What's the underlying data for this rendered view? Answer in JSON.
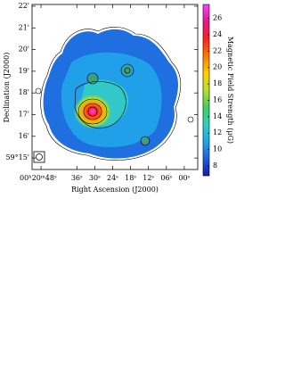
{
  "chart_data": {
    "type": "image",
    "xlabel": "Right Ascension (J2000)",
    "ylabel": "Declination (J2000)",
    "colorbar_label": "Magnetic Field Strength (μG)",
    "xlim": [
      51,
      -4.5
    ],
    "xticks": [
      {
        "value": 48,
        "label": "00ʰ20ᵐ48ˢ"
      },
      {
        "value": 36,
        "label": "36ˢ"
      },
      {
        "value": 30,
        "label": "30ˢ"
      },
      {
        "value": 24,
        "label": "24ˢ"
      },
      {
        "value": 18,
        "label": "18ˢ"
      },
      {
        "value": 12,
        "label": "12ˢ"
      },
      {
        "value": 6,
        "label": "06ˢ"
      },
      {
        "value": 0,
        "label": "00ˢ"
      }
    ],
    "ylim": [
      14.47,
      22.08
    ],
    "yticks": [
      {
        "value": 22,
        "label": "22'"
      },
      {
        "value": 21,
        "label": "21'"
      },
      {
        "value": 20,
        "label": "20'"
      },
      {
        "value": 19,
        "label": "19'"
      },
      {
        "value": 18,
        "label": "18'"
      },
      {
        "value": 17,
        "label": "17'"
      },
      {
        "value": 16,
        "label": "16'"
      },
      {
        "value": 15,
        "label": "59°15'"
      }
    ],
    "clim": [
      6.8,
      27.7
    ],
    "cticks": [
      8,
      10,
      12,
      14,
      16,
      18,
      20,
      22,
      24,
      26
    ],
    "colormap": [
      "#1a1a9e",
      "#1f5fe0",
      "#1fa8e8",
      "#30d0c0",
      "#40d060",
      "#b8e030",
      "#ffd000",
      "#ff7a00",
      "#ff2020",
      "#e01890",
      "#ff40ff"
    ]
  }
}
